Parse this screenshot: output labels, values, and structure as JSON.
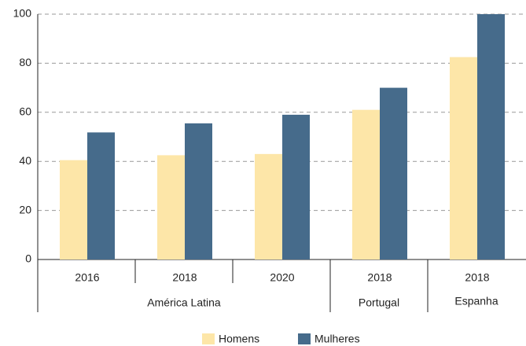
{
  "chart_data": {
    "type": "bar",
    "groups": [
      {
        "name": "América Latina",
        "categories": [
          "2016",
          "2018",
          "2020"
        ]
      },
      {
        "name": "Portugal",
        "categories": [
          "2018"
        ]
      },
      {
        "name": "Espanha",
        "categories": [
          "2018"
        ]
      }
    ],
    "series": [
      {
        "name": "Homens",
        "color": "#fde6a8",
        "values": [
          40.5,
          42.5,
          43,
          61,
          82.5
        ]
      },
      {
        "name": "Mulheres",
        "color": "#466b8b",
        "values": [
          51.8,
          55.5,
          59,
          70,
          100
        ]
      }
    ],
    "ylim": [
      0,
      100
    ],
    "yticks": [
      0,
      20,
      40,
      60,
      80,
      100
    ],
    "grid": true,
    "legend": "bottom"
  }
}
